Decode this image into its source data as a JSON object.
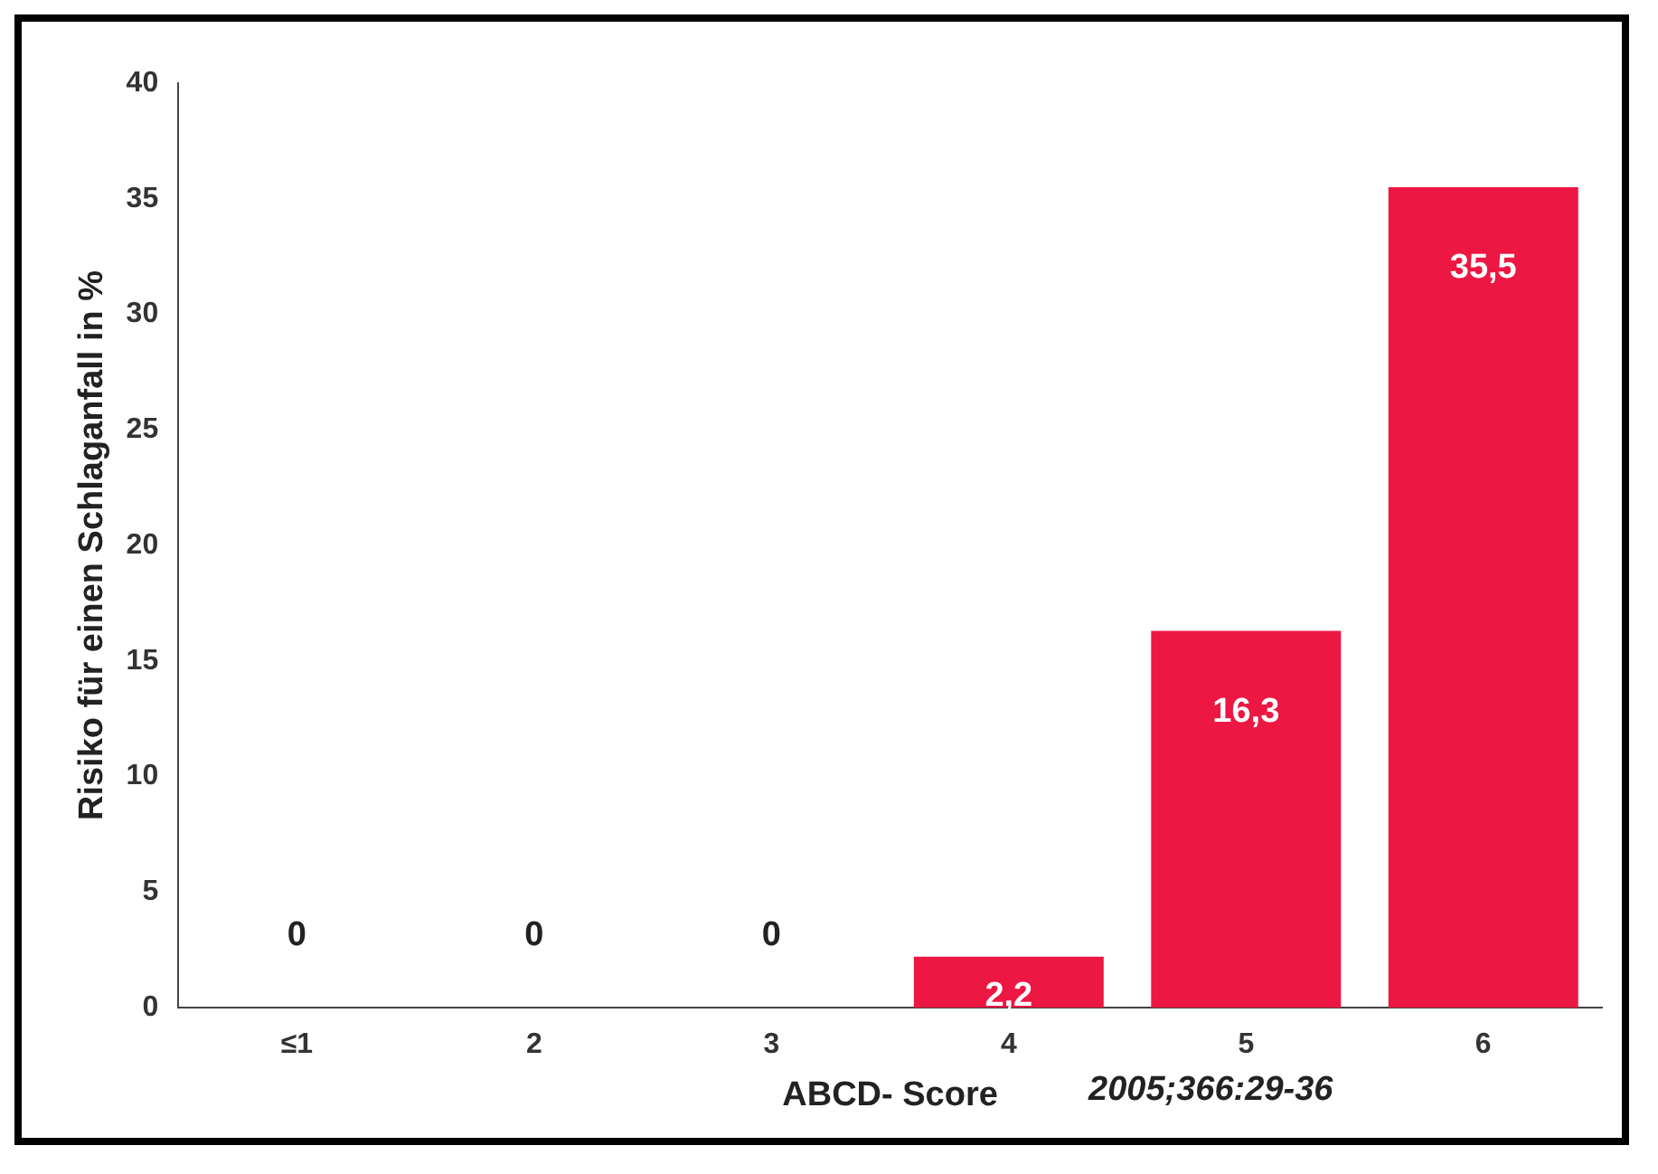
{
  "chart_data": {
    "type": "bar",
    "xlabel": "ABCD- Score",
    "ylabel": "Risiko für einen Schlaganfall in %",
    "categories": [
      "≤1",
      "2",
      "3",
      "4",
      "5",
      "6"
    ],
    "values": [
      0,
      0,
      0,
      2.2,
      16.3,
      35.5
    ],
    "value_labels": [
      "0",
      "0",
      "0",
      "2,2",
      "16,3",
      "35,5"
    ],
    "color": "#ec1743",
    "ylim": [
      0,
      40
    ],
    "yticks": [
      0,
      5,
      10,
      15,
      20,
      25,
      30,
      35,
      40
    ],
    "grid": false,
    "legend": false,
    "annotations": [
      "2005;366:29-36"
    ]
  }
}
